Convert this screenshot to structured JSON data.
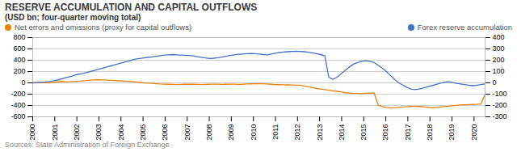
{
  "chart_data": {
    "type": "line",
    "title": "RESERVE ACCUMULATION AND CAPITAL OUTFLOWS",
    "subtitle": "(USD bn; four-quarter moving total)",
    "source": "Sources: State Administration of Foreign Exchange",
    "x": [
      2000,
      2000.186364,
      2000.372727,
      2000.559091,
      2000.745455,
      2000.931818,
      2001.118182,
      2001.304545,
      2001.490909,
      2001.677273,
      2001.863636,
      2002.05,
      2002.236364,
      2002.422727,
      2002.609091,
      2002.795455,
      2002.981818,
      2003.168182,
      2003.354545,
      2003.540909,
      2003.727273,
      2003.913636,
      2004.1,
      2004.286364,
      2004.472727,
      2004.659091,
      2004.845455,
      2005.031818,
      2005.218182,
      2005.404545,
      2005.590909,
      2005.777273,
      2005.963636,
      2006.15,
      2006.336364,
      2006.522727,
      2006.709091,
      2006.895455,
      2007.081818,
      2007.268182,
      2007.454545,
      2007.640909,
      2007.827273,
      2008.013636,
      2008.2,
      2008.386364,
      2008.572727,
      2008.759091,
      2008.945455,
      2009.131818,
      2009.318182,
      2009.504545,
      2009.690909,
      2009.877273,
      2010.063636,
      2010.25,
      2010.436364,
      2010.622727,
      2010.809091,
      2010.995455,
      2011.181818,
      2011.368182,
      2011.554545,
      2011.740909,
      2011.927273,
      2012.113636,
      2012.3,
      2012.486364,
      2012.672727,
      2012.859091,
      2013.045455,
      2013.231818,
      2013.418182,
      2013.604545,
      2013.790909,
      2013.977273,
      2014.163636,
      2014.35,
      2014.536364,
      2014.722727,
      2014.909091,
      2015.095455,
      2015.281818,
      2015.468182,
      2015.654545,
      2015.840909,
      2016.027273,
      2016.213636,
      2016.4,
      2016.586364,
      2016.772727,
      2016.959091,
      2017.145455,
      2017.331818,
      2017.518182,
      2017.704545,
      2017.890909,
      2018.077273,
      2018.263636,
      2018.45,
      2018.636364,
      2018.822727,
      2019.009091,
      2019.195455,
      2019.381818,
      2019.568182,
      2019.754545,
      2019.940909,
      2020.127273,
      2020.313636,
      2020.5
    ],
    "series": [
      {
        "name": "Net errors and omissions (proxy for capital outflows)",
        "color": "#e8820a",
        "values": [
          0,
          5,
          8,
          5,
          0,
          10,
          18,
          25,
          20,
          22,
          28,
          30,
          35,
          42,
          48,
          52,
          55,
          52,
          48,
          44,
          40,
          36,
          32,
          28,
          22,
          15,
          8,
          0,
          -5,
          -10,
          -15,
          -20,
          -22,
          -25,
          -28,
          -30,
          -28,
          -25,
          -22,
          -25,
          -28,
          -30,
          -28,
          -25,
          -22,
          -24,
          -28,
          -25,
          -22,
          -24,
          -28,
          -25,
          -20,
          -18,
          -15,
          -14,
          -16,
          -20,
          -25,
          -30,
          -32,
          -34,
          -36,
          -38,
          -40,
          -42,
          -55,
          -70,
          -85,
          -100,
          -110,
          -120,
          -130,
          -140,
          -150,
          -160,
          -175,
          -180,
          -185,
          -188,
          -190,
          -185,
          -182,
          -178,
          -390,
          -420,
          -435,
          -445,
          -440,
          -435,
          -428,
          -422,
          -418,
          -415,
          -418,
          -422,
          -430,
          -440,
          -435,
          -428,
          -420,
          -412,
          -405,
          -398,
          -392,
          -388,
          -385,
          -382,
          -378,
          -372,
          -200
        ]
      },
      {
        "name": "Forex reserve accumulation",
        "color": "#4472c4",
        "axis": "y2",
        "values": [
          0,
          2,
          5,
          8,
          12,
          18,
          25,
          35,
          45,
          55,
          65,
          75,
          82,
          90,
          100,
          110,
          120,
          130,
          140,
          150,
          160,
          170,
          180,
          190,
          200,
          210,
          215,
          220,
          225,
          230,
          235,
          240,
          245,
          248,
          250,
          248,
          246,
          244,
          242,
          238,
          232,
          226,
          220,
          215,
          218,
          222,
          228,
          235,
          242,
          248,
          252,
          255,
          258,
          260,
          258,
          255,
          250,
          248,
          255,
          262,
          268,
          272,
          275,
          278,
          280,
          278,
          275,
          270,
          265,
          258,
          250,
          240,
          50,
          30,
          50,
          80,
          110,
          140,
          165,
          180,
          190,
          195,
          190,
          180,
          155,
          130,
          100,
          65,
          30,
          0,
          -20,
          -40,
          -55,
          -60,
          -55,
          -45,
          -35,
          -25,
          -15,
          -5,
          5,
          10,
          5,
          -5,
          -10,
          -15,
          -20,
          -25,
          -20,
          -15,
          -10
        ]
      }
    ],
    "xlim": [
      2000,
      2020.5
    ],
    "xticks": [
      2000,
      2001,
      2002,
      2003,
      2004,
      2005,
      2006,
      2007,
      2008,
      2009,
      2010,
      2011,
      2012,
      2013,
      2014,
      2015,
      2016,
      2017,
      2018,
      2019,
      2020
    ],
    "ylim": [
      -600,
      800
    ],
    "yticks": [
      -600,
      -400,
      -200,
      0,
      200,
      400,
      600,
      800
    ],
    "y2lim": [
      -300,
      400
    ],
    "y2ticks": [
      -300,
      -200,
      -100,
      0,
      100,
      200,
      300,
      400
    ],
    "grid": true,
    "legend": "top"
  }
}
